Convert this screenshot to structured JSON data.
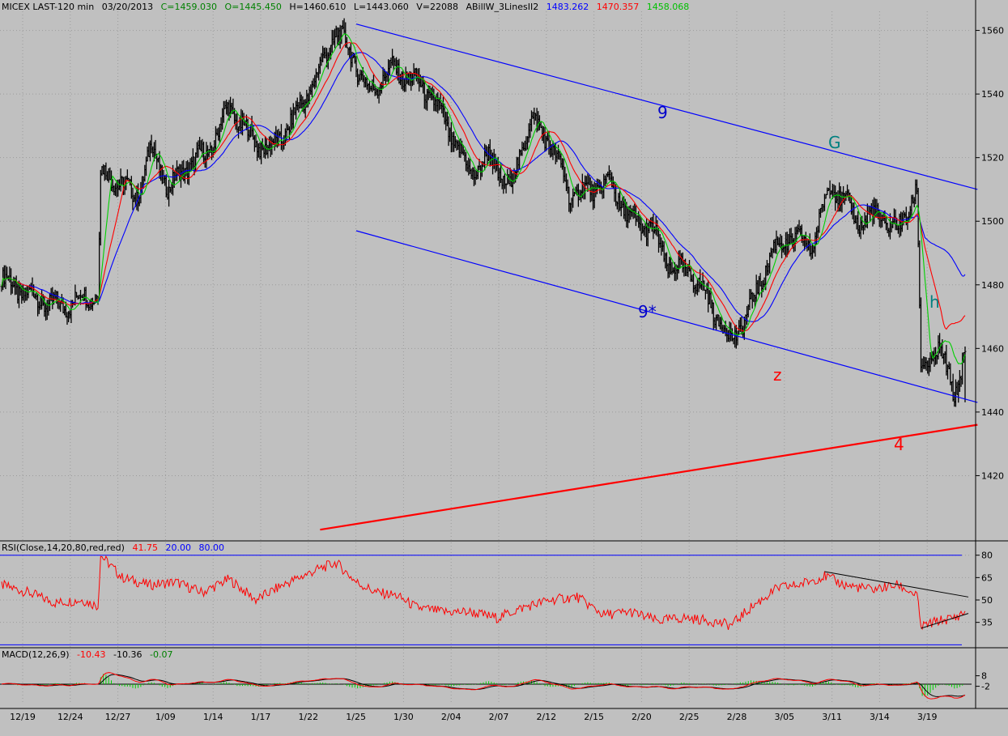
{
  "header": {
    "symbol": "MICEX LAST-120 min",
    "date": "03/20/2013",
    "close": "C=1459.030",
    "open": "O=1445.450",
    "high": "H=1460.610",
    "low": "L=1443.060",
    "volume": "V=22088",
    "indicator": "ABillW_3LinesII2",
    "line1": "1483.262",
    "line2": "1470.357",
    "line3": "1458.068"
  },
  "rsi_header": {
    "label": "RSI(Close,14,20,80,red,red)",
    "value": "41.75",
    "low": "20.00",
    "high": "80.00"
  },
  "macd_header": {
    "label": "MACD(12,26,9)",
    "macd": "-10.43",
    "signal": "-10.36",
    "hist": "-0.07"
  },
  "colors": {
    "background": "#c0c0c0",
    "grid": "#9c9c9c",
    "price_bars": "#000000",
    "line_blue": "#0000ff",
    "line_red": "#ff0000",
    "line_green": "#00d000",
    "annotation_blue": "#0000cc",
    "annotation_teal": "#008080",
    "annotation_red": "#ff0000",
    "header_green": "#008000"
  },
  "annotations": {
    "nine": "9",
    "nine_star": "9*",
    "g": "G",
    "z": "z",
    "h": "h",
    "four": "4"
  },
  "chart_data": [
    {
      "type": "ohlc",
      "title": "MICEX LAST-120 min",
      "x_tick_labels": [
        "12/19",
        "12/24",
        "12/27",
        "1/09",
        "1/14",
        "1/17",
        "1/22",
        "1/25",
        "1/30",
        "2/04",
        "2/07",
        "2/12",
        "2/15",
        "2/20",
        "2/25",
        "2/28",
        "3/05",
        "3/11",
        "3/14",
        "3/19"
      ],
      "y_ticks": [
        1420,
        1440,
        1460,
        1480,
        1500,
        1520,
        1540,
        1560
      ],
      "ylim": [
        1400,
        1566
      ],
      "close_path": [
        [
          0,
          1482
        ],
        [
          15,
          1478
        ],
        [
          30,
          1475
        ],
        [
          45,
          1473
        ],
        [
          60,
          1476
        ],
        [
          72,
          1477
        ],
        [
          74,
          1515
        ],
        [
          90,
          1512
        ],
        [
          100,
          1507
        ],
        [
          112,
          1523
        ],
        [
          125,
          1510
        ],
        [
          140,
          1518
        ],
        [
          155,
          1522
        ],
        [
          170,
          1536
        ],
        [
          185,
          1527
        ],
        [
          200,
          1522
        ],
        [
          215,
          1530
        ],
        [
          235,
          1545
        ],
        [
          250,
          1560
        ],
        [
          262,
          1552
        ],
        [
          275,
          1540
        ],
        [
          290,
          1548
        ],
        [
          305,
          1545
        ],
        [
          320,
          1540
        ],
        [
          335,
          1528
        ],
        [
          350,
          1515
        ],
        [
          365,
          1520
        ],
        [
          380,
          1510
        ],
        [
          395,
          1532
        ],
        [
          410,
          1525
        ],
        [
          425,
          1508
        ],
        [
          440,
          1510
        ],
        [
          455,
          1512
        ],
        [
          470,
          1500
        ],
        [
          485,
          1498
        ],
        [
          500,
          1485
        ],
        [
          515,
          1484
        ],
        [
          530,
          1474
        ],
        [
          545,
          1462
        ],
        [
          560,
          1473
        ],
        [
          575,
          1490
        ],
        [
          590,
          1495
        ],
        [
          605,
          1492
        ],
        [
          620,
          1512
        ],
        [
          640,
          1500
        ],
        [
          655,
          1502
        ],
        [
          670,
          1497
        ],
        [
          684,
          1510
        ],
        [
          687,
          1453
        ],
        [
          700,
          1460
        ],
        [
          712,
          1446
        ],
        [
          720,
          1458
        ]
      ],
      "last_bar": {
        "open": 1445.45,
        "high": 1460.61,
        "low": 1443.06,
        "close": 1459.03
      },
      "lines": [
        {
          "name": "1483.262",
          "color": "#0000ff",
          "last": 1483.262
        },
        {
          "name": "1470.357",
          "color": "#ff0000",
          "last": 1470.357
        },
        {
          "name": "1458.068",
          "color": "#00d000",
          "last": 1458.068
        }
      ],
      "trendlines": [
        {
          "label": "9",
          "from": [
            265,
            1562
          ],
          "to": [
            722,
            1510
          ]
        },
        {
          "label": "9*",
          "from": [
            265,
            1497
          ],
          "to": [
            722,
            1443
          ]
        },
        {
          "label": "4",
          "from": [
            238,
            1403
          ],
          "to": [
            722,
            1436
          ]
        }
      ]
    },
    {
      "type": "line",
      "title": "RSI(Close,14,20,80,red,red)",
      "y_ticks": [
        35,
        50,
        65,
        80
      ],
      "ylim": [
        18,
        82
      ],
      "levels": [
        20,
        80
      ],
      "last": 41.75,
      "path": [
        [
          0,
          60
        ],
        [
          20,
          55
        ],
        [
          40,
          48
        ],
        [
          60,
          50
        ],
        [
          72,
          46
        ],
        [
          74,
          80
        ],
        [
          90,
          65
        ],
        [
          110,
          60
        ],
        [
          130,
          62
        ],
        [
          150,
          55
        ],
        [
          170,
          64
        ],
        [
          190,
          50
        ],
        [
          210,
          60
        ],
        [
          235,
          70
        ],
        [
          250,
          75
        ],
        [
          265,
          62
        ],
        [
          280,
          55
        ],
        [
          295,
          53
        ],
        [
          310,
          45
        ],
        [
          330,
          42
        ],
        [
          350,
          42
        ],
        [
          370,
          38
        ],
        [
          390,
          45
        ],
        [
          410,
          50
        ],
        [
          430,
          52
        ],
        [
          450,
          40
        ],
        [
          470,
          42
        ],
        [
          490,
          36
        ],
        [
          510,
          38
        ],
        [
          530,
          36
        ],
        [
          545,
          33
        ],
        [
          560,
          45
        ],
        [
          580,
          58
        ],
        [
          595,
          60
        ],
        [
          615,
          66
        ],
        [
          630,
          60
        ],
        [
          650,
          57
        ],
        [
          670,
          60
        ],
        [
          684,
          53
        ],
        [
          687,
          32
        ],
        [
          700,
          36
        ],
        [
          712,
          38
        ],
        [
          720,
          42
        ]
      ]
    },
    {
      "type": "line",
      "title": "MACD(12,26,9)",
      "y_ticks": [
        -2,
        8
      ],
      "last": {
        "macd": -10.43,
        "signal": -10.36,
        "hist": -0.07
      }
    }
  ]
}
